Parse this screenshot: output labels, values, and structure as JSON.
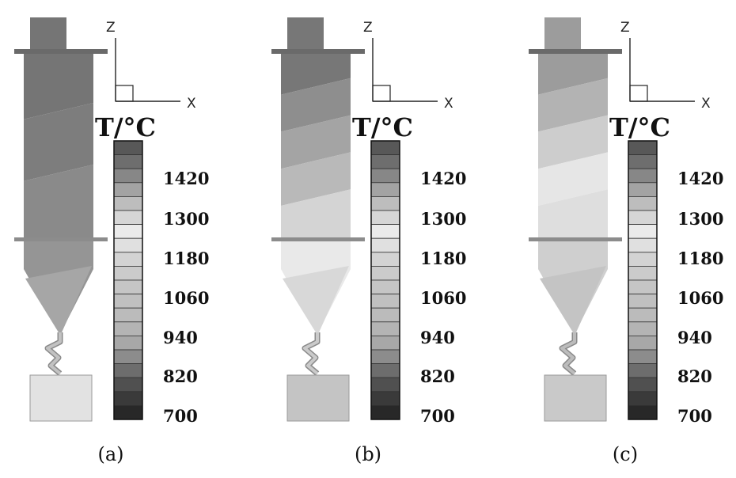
{
  "colorbar": {
    "title": "T/°C",
    "labels": [
      "1420",
      "1300",
      "1180",
      "1060",
      "940",
      "820",
      "700"
    ],
    "colors": [
      "#585858",
      "#6e6e6e",
      "#878787",
      "#a3a3a3",
      "#bdbdbd",
      "#d6d6d6",
      "#ebebeb",
      "#e0e0e0",
      "#d3d3d3",
      "#cbcbcb",
      "#c5c5c5",
      "#c0c0c0",
      "#bbbbbb",
      "#b4b4b4",
      "#a8a8a8",
      "#8c8c8c",
      "#6d6d6d",
      "#505050",
      "#3a3a3a",
      "#282828"
    ]
  },
  "axes": {
    "z": "Z",
    "x": "X"
  },
  "panels": [
    {
      "caption": "(a)",
      "shaft_colors": [
        "#757575",
        "#7d7d7d",
        "#8a8a8a"
      ],
      "cone_colors": [
        "#959595",
        "#a6a6a6"
      ],
      "bend_color": "#c2c2c2",
      "box_color": "#e2e2e2"
    },
    {
      "caption": "(b)",
      "shaft_colors": [
        "#777777",
        "#8e8e8e",
        "#a4a4a4",
        "#b9b9b9",
        "#d4d4d4"
      ],
      "cone_colors": [
        "#e9e9e9",
        "#d8d8d8"
      ],
      "bend_color": "#cacaca",
      "box_color": "#c4c4c4"
    },
    {
      "caption": "(c)",
      "shaft_colors": [
        "#9c9c9c",
        "#b3b3b3",
        "#cdcdcd",
        "#e6e6e6",
        "#dedede"
      ],
      "cone_colors": [
        "#cfcfcf",
        "#c4c4c4"
      ],
      "bend_color": "#bcbcbc",
      "box_color": "#c9c9c9"
    }
  ]
}
